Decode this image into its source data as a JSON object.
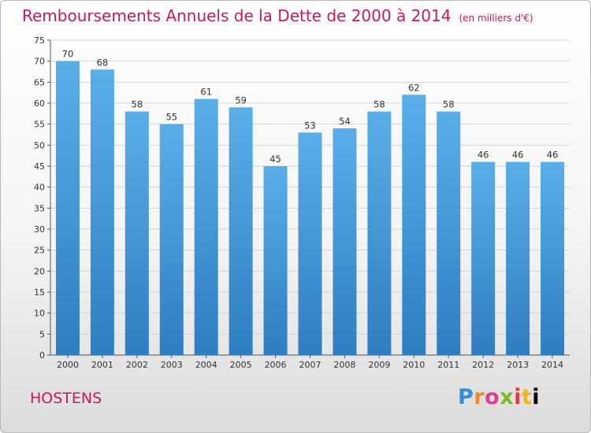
{
  "header": {
    "title": "Remboursements Annuels de la Dette de 2000 à 2014",
    "unit": "(en milliers d'€)"
  },
  "commune": "HOSTENS",
  "logo": {
    "letters": [
      "P",
      "r",
      "o",
      "x",
      "i",
      "t",
      "i"
    ]
  },
  "colors": {
    "accent": "#c8195e",
    "bar_light": "#5aaee8",
    "bar_dark": "#2f7ec1",
    "grid": "#d5d5d5"
  },
  "chart_data": {
    "type": "bar",
    "categories": [
      "2000",
      "2001",
      "2002",
      "2003",
      "2004",
      "2005",
      "2006",
      "2007",
      "2008",
      "2009",
      "2010",
      "2011",
      "2012",
      "2013",
      "2014"
    ],
    "values": [
      70,
      68,
      58,
      55,
      61,
      59,
      45,
      53,
      54,
      58,
      62,
      58,
      46,
      46,
      46
    ],
    "ylim": [
      0,
      75
    ],
    "yticks": [
      0,
      5,
      10,
      15,
      20,
      25,
      30,
      35,
      40,
      45,
      50,
      55,
      60,
      65,
      70,
      75
    ],
    "grid": true,
    "data_labels": true
  }
}
